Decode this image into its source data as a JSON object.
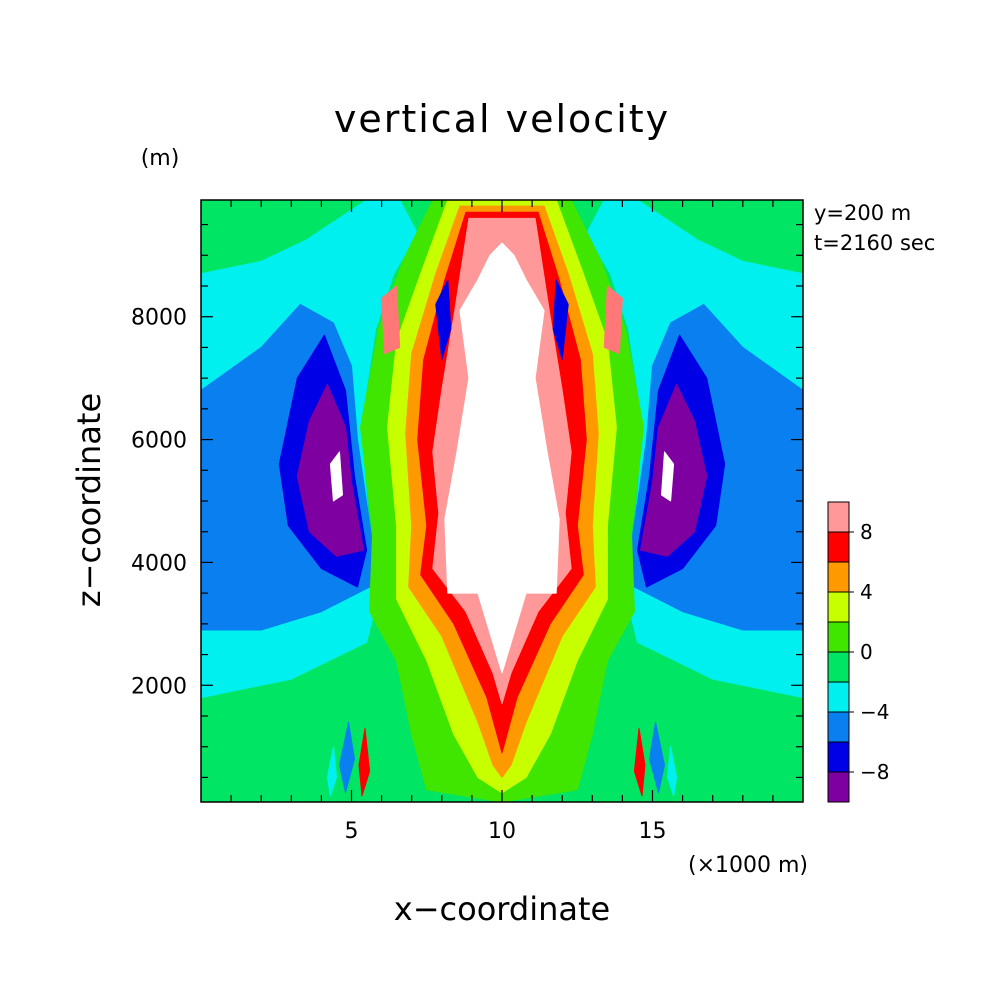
{
  "chart_data": {
    "type": "heatmap",
    "title": "vertical velocity",
    "xlabel": "x−coordinate",
    "ylabel": "z−coordinate",
    "x_unit": "(×1000 m)",
    "y_unit": "(m)",
    "annotations": [
      "y=200 m",
      "t=2160 sec"
    ],
    "xlim": [
      0,
      20
    ],
    "ylim": [
      100,
      9900
    ],
    "x_ticks": [
      5,
      10,
      15
    ],
    "x_tick_labels": [
      "5",
      "10",
      "15"
    ],
    "y_ticks": [
      2000,
      4000,
      6000,
      8000
    ],
    "y_tick_labels": [
      "2000",
      "4000",
      "6000",
      "8000"
    ],
    "grid": false,
    "legend": "right",
    "colorbar": {
      "levels": [
        -10,
        -8,
        -6,
        -4,
        -2,
        0,
        2,
        4,
        6,
        8,
        10
      ],
      "tick_values": [
        8,
        4,
        0,
        -4,
        -8
      ],
      "tick_labels": [
        "8",
        "4",
        "0",
        "−4",
        "−8"
      ],
      "colors": [
        "#7f00a0",
        "#0000e6",
        "#0a7ff0",
        "#00f0f0",
        "#00e664",
        "#40e600",
        "#c8ff00",
        "#ff9900",
        "#ff0000",
        "#ff9999"
      ],
      "above_max_color": "#ffffff"
    },
    "field_description": "symmetric updraft core near x=10 (above 10 m/s, white) between z≈3500 and 9200; strong downdrafts (below −8) near x≈4.5 and x≈15.5 around z≈5500",
    "regions": [
      {
        "value_band": "-2..0",
        "color": "#00e664",
        "points": [
          [
            0,
            100
          ],
          [
            20,
            100
          ],
          [
            20,
            9900
          ],
          [
            0,
            9900
          ]
        ]
      },
      {
        "value_band": "-4..-2",
        "color": "#00f0f0",
        "points": [
          [
            0,
            1800
          ],
          [
            3,
            2100
          ],
          [
            5.5,
            2700
          ],
          [
            5.8,
            3300
          ],
          [
            5.6,
            4500
          ],
          [
            5.3,
            6200
          ],
          [
            5.8,
            7800
          ],
          [
            6.4,
            8700
          ],
          [
            7.2,
            9350
          ],
          [
            6.6,
            9900
          ],
          [
            5.5,
            9900
          ],
          [
            3.5,
            9250
          ],
          [
            2,
            8900
          ],
          [
            0,
            8700
          ]
        ]
      },
      {
        "value_band": "-4..-2",
        "color": "#00f0f0",
        "points": [
          [
            20,
            1800
          ],
          [
            17,
            2100
          ],
          [
            14.5,
            2700
          ],
          [
            14.2,
            3300
          ],
          [
            14.4,
            4500
          ],
          [
            14.7,
            6200
          ],
          [
            14.2,
            7800
          ],
          [
            13.6,
            8700
          ],
          [
            12.8,
            9350
          ],
          [
            13.4,
            9900
          ],
          [
            14.5,
            9900
          ],
          [
            16.5,
            9250
          ],
          [
            18,
            8900
          ],
          [
            20,
            8700
          ]
        ]
      },
      {
        "value_band": "-6..-4",
        "color": "#0a7ff0",
        "points": [
          [
            0,
            2900
          ],
          [
            2,
            2900
          ],
          [
            4,
            3200
          ],
          [
            5.6,
            3600
          ],
          [
            5.7,
            4300
          ],
          [
            5.2,
            6000
          ],
          [
            5,
            7200
          ],
          [
            4.4,
            7900
          ],
          [
            3.3,
            8200
          ],
          [
            2,
            7500
          ],
          [
            0,
            6800
          ]
        ]
      },
      {
        "value_band": "-6..-4",
        "color": "#0a7ff0",
        "points": [
          [
            20,
            2900
          ],
          [
            18,
            2900
          ],
          [
            16,
            3200
          ],
          [
            14.4,
            3600
          ],
          [
            14.3,
            4300
          ],
          [
            14.8,
            6000
          ],
          [
            15,
            7200
          ],
          [
            15.6,
            7900
          ],
          [
            16.7,
            8200
          ],
          [
            18,
            7500
          ],
          [
            20,
            6800
          ]
        ]
      },
      {
        "value_band": "-8..-6",
        "color": "#0000e6",
        "points": [
          [
            2.6,
            5600
          ],
          [
            2.9,
            4600
          ],
          [
            4,
            3900
          ],
          [
            5.2,
            3600
          ],
          [
            5.5,
            4200
          ],
          [
            5.1,
            5400
          ],
          [
            4.8,
            6800
          ],
          [
            4.1,
            7700
          ],
          [
            3.2,
            7000
          ]
        ]
      },
      {
        "value_band": "-8..-6",
        "color": "#0000e6",
        "points": [
          [
            17.4,
            5600
          ],
          [
            17.1,
            4600
          ],
          [
            16,
            3900
          ],
          [
            14.8,
            3600
          ],
          [
            14.5,
            4200
          ],
          [
            14.9,
            5400
          ],
          [
            15.2,
            6800
          ],
          [
            15.9,
            7700
          ],
          [
            16.8,
            7000
          ]
        ]
      },
      {
        "value_band": "-10..-8",
        "color": "#7f00a0",
        "points": [
          [
            3.2,
            5400
          ],
          [
            3.6,
            4500
          ],
          [
            4.5,
            4100
          ],
          [
            5.4,
            4200
          ],
          [
            5,
            5300
          ],
          [
            4.8,
            6200
          ],
          [
            4.2,
            6900
          ],
          [
            3.6,
            6300
          ]
        ]
      },
      {
        "value_band": "-10..-8",
        "color": "#7f00a0",
        "points": [
          [
            16.8,
            5400
          ],
          [
            16.4,
            4500
          ],
          [
            15.5,
            4100
          ],
          [
            14.6,
            4200
          ],
          [
            15,
            5300
          ],
          [
            15.2,
            6200
          ],
          [
            15.8,
            6900
          ],
          [
            16.4,
            6300
          ]
        ]
      },
      {
        "value_band": "below -10",
        "color": "#ffffff",
        "points": [
          [
            4.4,
            5000
          ],
          [
            4.7,
            5100
          ],
          [
            4.6,
            5800
          ],
          [
            4.3,
            5600
          ]
        ]
      },
      {
        "value_band": "below -10",
        "color": "#ffffff",
        "points": [
          [
            15.6,
            5000
          ],
          [
            15.3,
            5100
          ],
          [
            15.4,
            5800
          ],
          [
            15.7,
            5600
          ]
        ]
      },
      {
        "value_band": "0..2",
        "color": "#40e600",
        "points": [
          [
            5.6,
            3200
          ],
          [
            6.5,
            2400
          ],
          [
            7,
            1200
          ],
          [
            7.5,
            300
          ],
          [
            10,
            100
          ],
          [
            12.5,
            300
          ],
          [
            13,
            1200
          ],
          [
            13.5,
            2400
          ],
          [
            14.4,
            3200
          ],
          [
            14.3,
            4500
          ],
          [
            14.7,
            6200
          ],
          [
            14.1,
            7800
          ],
          [
            13.3,
            8900
          ],
          [
            12.3,
            9900
          ],
          [
            7.7,
            9900
          ],
          [
            6.7,
            8900
          ],
          [
            5.9,
            7800
          ],
          [
            5.3,
            6200
          ],
          [
            5.7,
            4500
          ]
        ]
      },
      {
        "value_band": "2..4",
        "color": "#c8ff00",
        "points": [
          [
            6.5,
            3400
          ],
          [
            7.5,
            2400
          ],
          [
            8.4,
            1200
          ],
          [
            9.2,
            500
          ],
          [
            10,
            250
          ],
          [
            10.8,
            500
          ],
          [
            11.6,
            1200
          ],
          [
            12.5,
            2400
          ],
          [
            13.5,
            3400
          ],
          [
            13.5,
            4600
          ],
          [
            13.8,
            6200
          ],
          [
            13.5,
            7600
          ],
          [
            12.7,
            8700
          ],
          [
            11.8,
            9900
          ],
          [
            8.2,
            9900
          ],
          [
            7.3,
            8700
          ],
          [
            6.5,
            7600
          ],
          [
            6.2,
            6200
          ],
          [
            6.5,
            4600
          ]
        ]
      },
      {
        "value_band": "4..6",
        "color": "#ff9900",
        "points": [
          [
            6.9,
            3600
          ],
          [
            8,
            2800
          ],
          [
            9.2,
            1400
          ],
          [
            9.7,
            700
          ],
          [
            10,
            500
          ],
          [
            10.3,
            700
          ],
          [
            10.8,
            1400
          ],
          [
            12,
            2800
          ],
          [
            13.1,
            3600
          ],
          [
            13,
            4600
          ],
          [
            13.2,
            6100
          ],
          [
            13,
            7400
          ],
          [
            12.2,
            8700
          ],
          [
            11.4,
            9800
          ],
          [
            8.6,
            9800
          ],
          [
            7.8,
            8700
          ],
          [
            7,
            7400
          ],
          [
            6.8,
            6100
          ],
          [
            7,
            4600
          ]
        ]
      },
      {
        "value_band": "6..8",
        "color": "#ff0000",
        "points": [
          [
            7.3,
            3800
          ],
          [
            8.4,
            3000
          ],
          [
            9.5,
            1800
          ],
          [
            10,
            900
          ],
          [
            10.5,
            1800
          ],
          [
            11.6,
            3000
          ],
          [
            12.7,
            3800
          ],
          [
            12.5,
            4600
          ],
          [
            12.8,
            6000
          ],
          [
            12.6,
            7300
          ],
          [
            11.9,
            8600
          ],
          [
            11.2,
            9700
          ],
          [
            8.8,
            9700
          ],
          [
            8.1,
            8600
          ],
          [
            7.4,
            7300
          ],
          [
            7.2,
            6000
          ],
          [
            7.5,
            4600
          ]
        ]
      },
      {
        "value_band": "8..10",
        "color": "#ff9999",
        "points": [
          [
            7.7,
            3900
          ],
          [
            8.8,
            3200
          ],
          [
            9.7,
            2200
          ],
          [
            10,
            1700
          ],
          [
            10.3,
            2200
          ],
          [
            11.2,
            3200
          ],
          [
            12.3,
            3900
          ],
          [
            12.1,
            4800
          ],
          [
            12.3,
            5800
          ],
          [
            12,
            6800
          ],
          [
            11.6,
            8000
          ],
          [
            11.1,
            9600
          ],
          [
            8.9,
            9600
          ],
          [
            8.4,
            8000
          ],
          [
            8,
            6800
          ],
          [
            7.7,
            5800
          ],
          [
            7.9,
            4800
          ]
        ]
      },
      {
        "value_band": "above 10",
        "color": "#ffffff",
        "points": [
          [
            8.2,
            3500
          ],
          [
            9.2,
            3500
          ],
          [
            10,
            2200
          ],
          [
            10.8,
            3500
          ],
          [
            11.8,
            3500
          ],
          [
            11.9,
            4700
          ],
          [
            11.5,
            5800
          ],
          [
            11.1,
            7000
          ],
          [
            11.4,
            8100
          ],
          [
            10.8,
            8600
          ],
          [
            10.4,
            9000
          ],
          [
            10,
            9200
          ],
          [
            9.6,
            9000
          ],
          [
            9.2,
            8600
          ],
          [
            8.6,
            8100
          ],
          [
            8.9,
            7000
          ],
          [
            8.5,
            5800
          ],
          [
            8.1,
            4700
          ]
        ]
      },
      {
        "value_band": "8..10",
        "color": "#ff7777",
        "points": [
          [
            6.1,
            7400
          ],
          [
            6.6,
            7500
          ],
          [
            6.5,
            8500
          ],
          [
            6,
            8300
          ]
        ]
      },
      {
        "value_band": "8..10",
        "color": "#ff7777",
        "points": [
          [
            13.9,
            7400
          ],
          [
            13.4,
            7500
          ],
          [
            13.5,
            8500
          ],
          [
            14,
            8300
          ]
        ]
      },
      {
        "value_band": "-8..-6",
        "color": "#0000e6",
        "points": [
          [
            8,
            7300
          ],
          [
            8.3,
            7800
          ],
          [
            8.2,
            8600
          ],
          [
            7.8,
            8200
          ]
        ]
      },
      {
        "value_band": "-8..-6",
        "color": "#0000e6",
        "points": [
          [
            12,
            7300
          ],
          [
            11.7,
            7800
          ],
          [
            11.8,
            8600
          ],
          [
            12.2,
            8200
          ]
        ]
      },
      {
        "value_band": "-6..-4",
        "color": "#0a7ff0",
        "points": [
          [
            4.8,
            250
          ],
          [
            5.1,
            800
          ],
          [
            4.9,
            1400
          ],
          [
            4.6,
            700
          ]
        ]
      },
      {
        "value_band": "-6..-4",
        "color": "#0a7ff0",
        "points": [
          [
            15.2,
            250
          ],
          [
            14.9,
            800
          ],
          [
            15.1,
            1400
          ],
          [
            15.4,
            700
          ]
        ]
      },
      {
        "value_band": "6..8",
        "color": "#ff0000",
        "points": [
          [
            5.35,
            200
          ],
          [
            5.6,
            600
          ],
          [
            5.45,
            1300
          ],
          [
            5.25,
            700
          ]
        ]
      },
      {
        "value_band": "6..8",
        "color": "#ff0000",
        "points": [
          [
            14.65,
            200
          ],
          [
            14.4,
            600
          ],
          [
            14.55,
            1300
          ],
          [
            14.75,
            700
          ]
        ]
      },
      {
        "value_band": "-4..-2",
        "color": "#00f0f0",
        "points": [
          [
            4.3,
            200
          ],
          [
            4.5,
            500
          ],
          [
            4.4,
            1000
          ],
          [
            4.2,
            500
          ]
        ]
      },
      {
        "value_band": "-4..-2",
        "color": "#00f0f0",
        "points": [
          [
            15.7,
            200
          ],
          [
            15.5,
            500
          ],
          [
            15.6,
            1000
          ],
          [
            15.8,
            500
          ]
        ]
      }
    ]
  }
}
